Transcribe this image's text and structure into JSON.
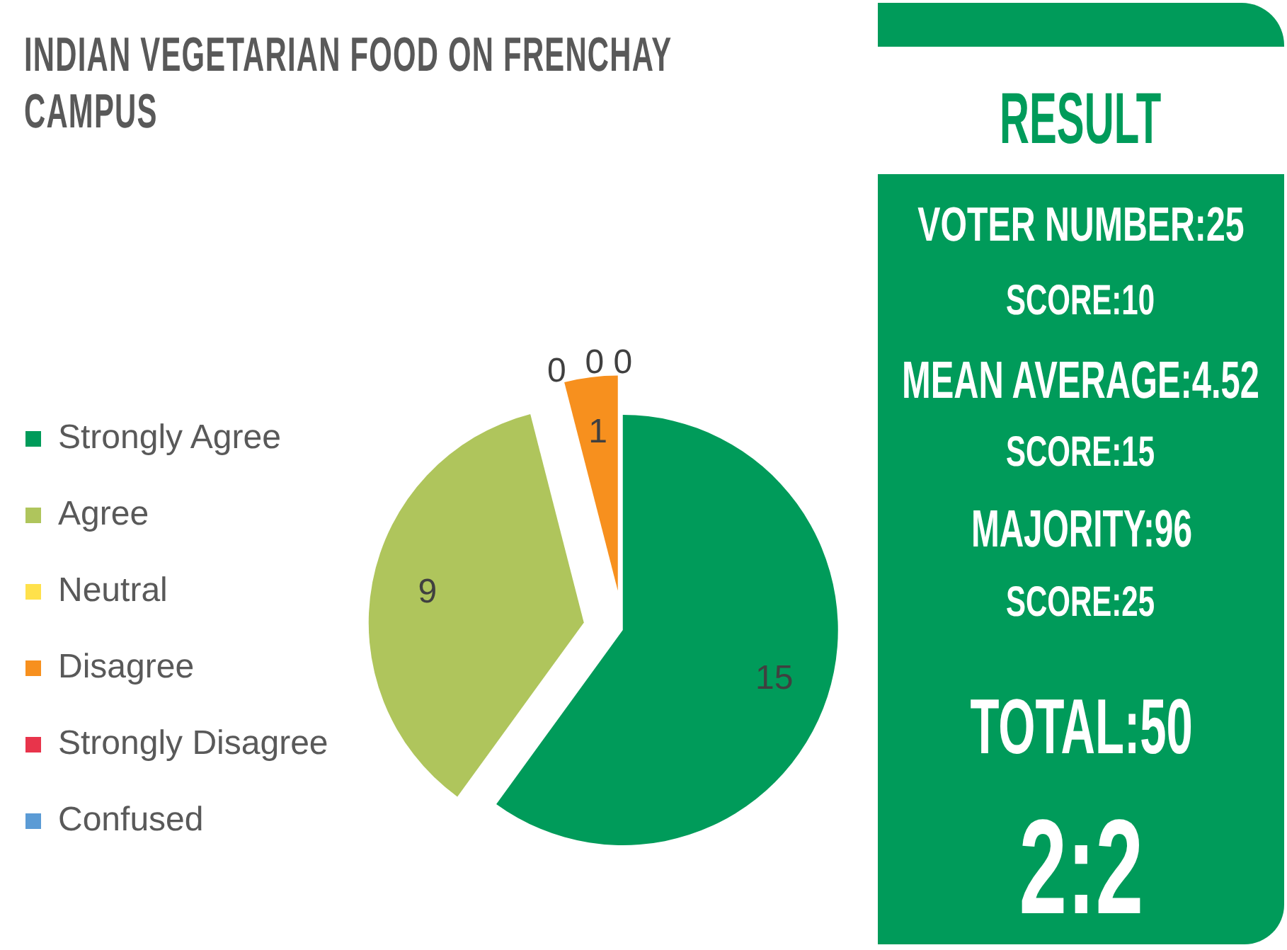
{
  "chart_data": [
    {
      "type": "pie",
      "title": "INDIAN VEGETARIAN FOOD ON FRENCHAY CAMPUS",
      "categories": [
        "Strongly Agree",
        "Agree",
        "Neutral",
        "Disagree",
        "Strongly Disagree",
        "Confused"
      ],
      "values": [
        15,
        9,
        0,
        1,
        0,
        0
      ],
      "value_labels": [
        "15",
        "9",
        "0",
        "1",
        "0",
        "0"
      ],
      "colors": [
        "#009b5a",
        "#afc55c",
        "#ffe14b",
        "#f7901e",
        "#e8344b",
        "#5b9bd5"
      ],
      "legend": "left"
    },
    {
      "type": "other",
      "title": "RESULT",
      "annotations": [
        "VOTER NUMBER:25",
        "SCORE:10",
        "MEAN AVERAGE:4.52",
        "SCORE:15",
        "MAJORITY:96",
        "SCORE:25",
        "TOTAL:50",
        "2:2"
      ]
    }
  ]
}
